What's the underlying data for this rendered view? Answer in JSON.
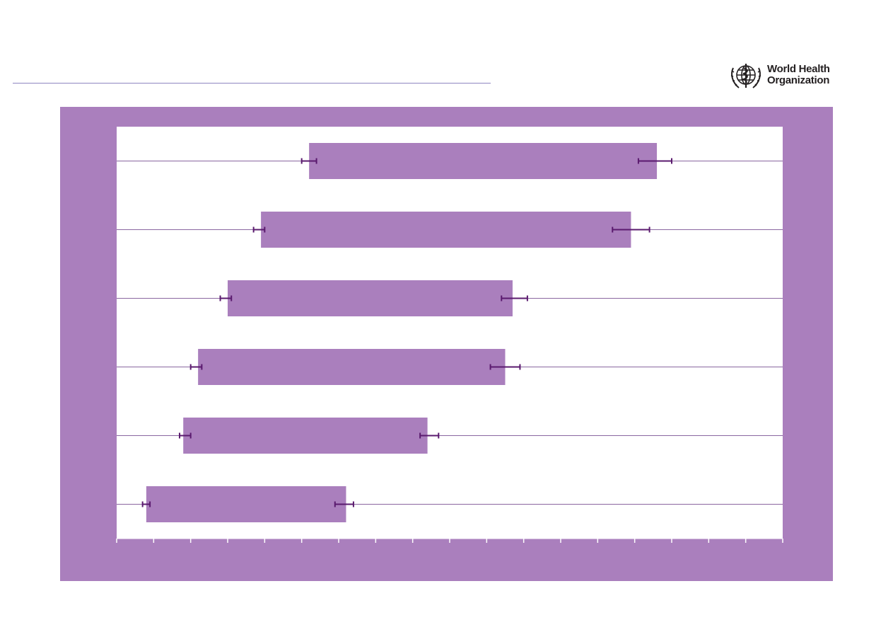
{
  "logo": {
    "org_name_line1": "World Health",
    "org_name_line2": "Organization",
    "icon": "who-emblem-icon"
  },
  "colors": {
    "frame": "#aa7fbd",
    "bar": "#aa7fbd",
    "plot_bg": "#ffffff",
    "gridline": "#8a66a0",
    "error_bar": "#5a1a6e",
    "header_rule": "#8e86c0"
  },
  "chart_data": {
    "type": "bar",
    "orientation": "horizontal",
    "title": "",
    "xlabel": "",
    "ylabel": "",
    "xlim": [
      0,
      18
    ],
    "x_tick_count": 19,
    "grid": "horizontal lines at each category",
    "legend": "none",
    "floating_bars": true,
    "series": [
      {
        "starts": [
          5.2,
          3.9,
          3.0,
          2.2,
          1.8,
          0.8
        ],
        "ends": [
          14.6,
          13.9,
          10.7,
          10.5,
          8.4,
          6.2
        ],
        "start_error": [
          [
            5.0,
            5.4
          ],
          [
            3.7,
            4.0
          ],
          [
            2.8,
            3.1
          ],
          [
            2.0,
            2.3
          ],
          [
            1.7,
            2.0
          ],
          [
            0.7,
            0.9
          ]
        ],
        "end_error": [
          [
            14.1,
            15.0
          ],
          [
            13.4,
            14.4
          ],
          [
            10.4,
            11.1
          ],
          [
            10.1,
            10.9
          ],
          [
            8.2,
            8.7
          ],
          [
            5.9,
            6.4
          ]
        ]
      }
    ]
  }
}
